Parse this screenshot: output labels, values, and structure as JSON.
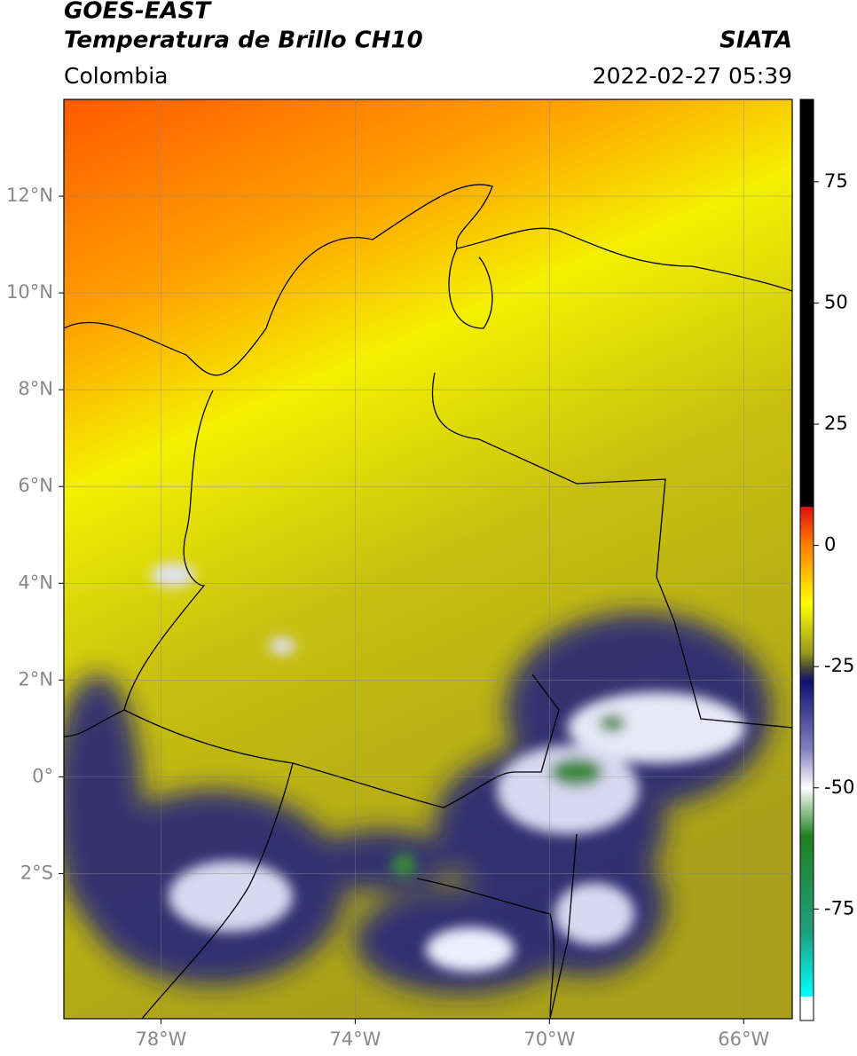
{
  "header": {
    "title": "GOES-EAST",
    "subtitle": "Temperatura de Brillo CH10",
    "source": "SIATA",
    "region": "Colombia",
    "datetime": "2022-02-27 05:39"
  },
  "map": {
    "xlim": [
      -80,
      -65
    ],
    "ylim": [
      -5,
      14
    ],
    "grid": true,
    "xticks": [
      {
        "value": -78,
        "label": "78°W"
      },
      {
        "value": -74,
        "label": "74°W"
      },
      {
        "value": -70,
        "label": "70°W"
      },
      {
        "value": -66,
        "label": "66°W"
      }
    ],
    "yticks": [
      {
        "value": 12,
        "label": "12°N"
      },
      {
        "value": 10,
        "label": "10°N"
      },
      {
        "value": 8,
        "label": "8°N"
      },
      {
        "value": 6,
        "label": "6°N"
      },
      {
        "value": 4,
        "label": "4°N"
      },
      {
        "value": 2,
        "label": "2°N"
      },
      {
        "value": 0,
        "label": "0°"
      },
      {
        "value": -2,
        "label": "2°S"
      }
    ]
  },
  "colorbar": {
    "lim": [
      -98,
      92
    ],
    "ticks": [
      75,
      50,
      25,
      0,
      -25,
      -50,
      -75
    ],
    "stops": [
      {
        "value": 92,
        "color": "#000000"
      },
      {
        "value": 8,
        "color": "#000000"
      },
      {
        "value": 7.9,
        "color": "#e01010"
      },
      {
        "value": 0,
        "color": "#ff8000"
      },
      {
        "value": -12,
        "color": "#ffff00"
      },
      {
        "value": -22,
        "color": "#9a9a20"
      },
      {
        "value": -25,
        "color": "#505030"
      },
      {
        "value": -28,
        "color": "#101070"
      },
      {
        "value": -42,
        "color": "#8080c0"
      },
      {
        "value": -50,
        "color": "#ffffff"
      },
      {
        "value": -60,
        "color": "#208020"
      },
      {
        "value": -80,
        "color": "#20a080"
      },
      {
        "value": -93,
        "color": "#00ffff"
      },
      {
        "value": -93.1,
        "color": "#ffffff"
      },
      {
        "value": -98,
        "color": "#ffffff"
      }
    ]
  }
}
